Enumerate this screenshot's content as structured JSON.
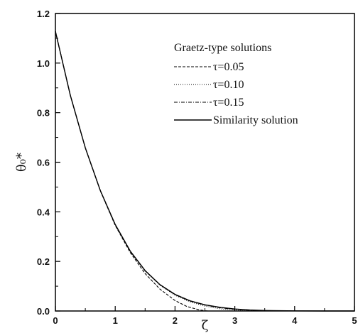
{
  "chart_data": {
    "type": "line",
    "xlabel": "ζ",
    "ylabel": "θ₀*",
    "xlim": [
      0,
      5
    ],
    "ylim": [
      0,
      1.2
    ],
    "x_ticks": [
      "0",
      "1",
      "2",
      "3",
      "4",
      "5"
    ],
    "y_ticks": [
      "0.0",
      "0.2",
      "0.4",
      "0.6",
      "0.8",
      "1.0",
      "1.2"
    ],
    "legend_title": "Graetz-type solutions",
    "legend_position": "top-right",
    "series": [
      {
        "name": "τ=0.05",
        "style": "dashed",
        "x": [
          0,
          0.25,
          0.5,
          0.75,
          1.0,
          1.25,
          1.5,
          1.75,
          2.0,
          2.2,
          2.4,
          2.5,
          2.55
        ],
        "y": [
          1.128,
          0.87,
          0.658,
          0.485,
          0.345,
          0.236,
          0.151,
          0.088,
          0.042,
          0.018,
          0.005,
          0.001,
          0.0
        ]
      },
      {
        "name": "τ=0.10",
        "style": "dotted",
        "x": [
          0,
          0.25,
          0.5,
          0.75,
          1.0,
          1.25,
          1.5,
          1.75,
          2.0,
          2.25,
          2.5,
          2.75,
          3.0,
          3.25,
          3.5
        ],
        "y": [
          1.128,
          0.87,
          0.658,
          0.486,
          0.348,
          0.241,
          0.161,
          0.104,
          0.064,
          0.037,
          0.02,
          0.009,
          0.004,
          0.001,
          0.0
        ]
      },
      {
        "name": "τ=0.15",
        "style": "dashdot",
        "x": [
          0,
          0.25,
          0.5,
          0.75,
          1.0,
          1.25,
          1.5,
          1.75,
          2.0,
          2.25,
          2.5,
          2.75,
          3.0,
          3.25,
          3.5,
          3.75,
          4.0
        ],
        "y": [
          1.128,
          0.87,
          0.658,
          0.486,
          0.348,
          0.241,
          0.162,
          0.105,
          0.066,
          0.04,
          0.024,
          0.013,
          0.007,
          0.003,
          0.001,
          0.0005,
          0.0
        ]
      },
      {
        "name": "Similarity solution",
        "style": "solid",
        "x": [
          0,
          0.25,
          0.5,
          0.75,
          1.0,
          1.25,
          1.5,
          1.75,
          2.0,
          2.25,
          2.5,
          2.75,
          3.0,
          3.25,
          3.5,
          4.0,
          4.5,
          5.0
        ],
        "y": [
          1.128,
          0.87,
          0.658,
          0.486,
          0.349,
          0.242,
          0.163,
          0.106,
          0.067,
          0.041,
          0.025,
          0.015,
          0.008,
          0.004,
          0.002,
          0.0005,
          0.0001,
          0.0
        ]
      }
    ]
  }
}
